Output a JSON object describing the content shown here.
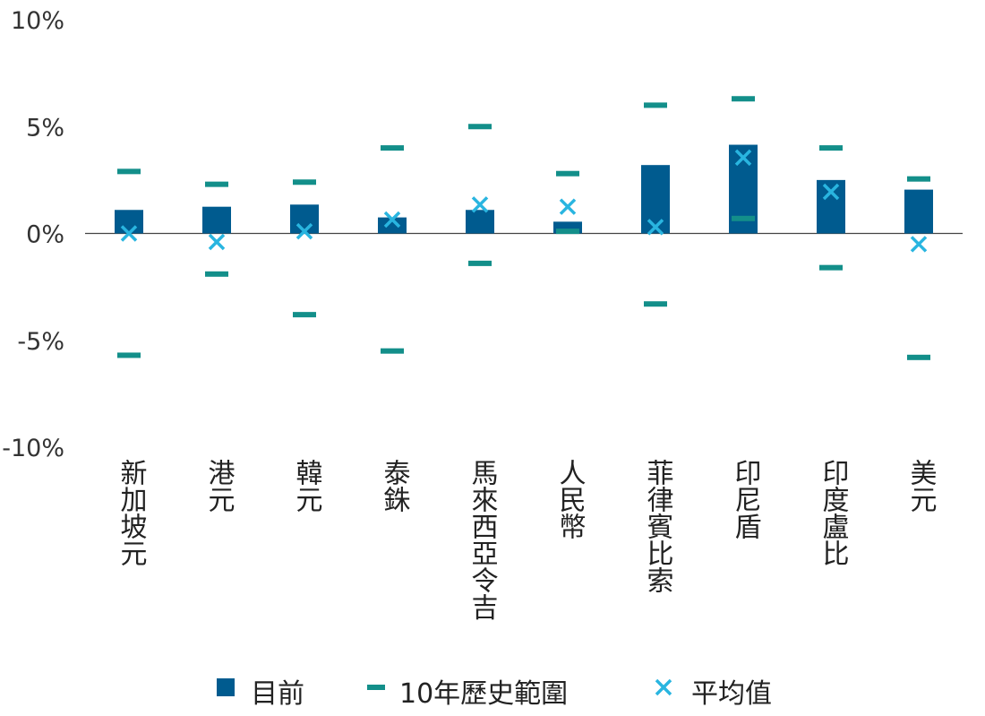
{
  "chart_data": {
    "type": "bar",
    "categories": [
      "新加坡元",
      "港元",
      "韓元",
      "泰銖",
      "馬來西亞令吉",
      "人民幣",
      "菲律賓比索",
      "印尼盾",
      "印度盧比",
      "美元"
    ],
    "ylim": [
      -10,
      10
    ],
    "yticks": [
      10,
      5,
      0,
      -5,
      -10
    ],
    "ytick_labels": [
      "10%",
      "5%",
      "0%",
      "-5%",
      "-10%"
    ],
    "grid": false,
    "legend_position": "bottom",
    "series": [
      {
        "name": "目前",
        "kind": "bar",
        "color": "#005b8f",
        "values": [
          1.1,
          1.25,
          1.35,
          0.75,
          1.1,
          0.55,
          3.2,
          4.15,
          2.5,
          2.05
        ]
      },
      {
        "name": "10年歷史範圍",
        "kind": "range",
        "color": "#138f8a",
        "high": [
          2.9,
          2.3,
          2.4,
          4.0,
          5.0,
          2.8,
          6.0,
          6.3,
          4.0,
          2.55
        ],
        "low": [
          -5.7,
          -1.9,
          -3.8,
          -5.5,
          -1.4,
          0.1,
          -3.3,
          0.7,
          -1.6,
          -5.8
        ]
      },
      {
        "name": "平均值",
        "kind": "marker",
        "color": "#29b5e0",
        "values": [
          0.0,
          -0.4,
          0.1,
          0.65,
          1.35,
          1.25,
          0.3,
          3.55,
          1.95,
          -0.5
        ]
      }
    ]
  }
}
